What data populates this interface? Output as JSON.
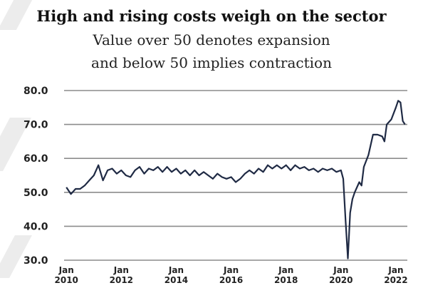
{
  "chart_data": {
    "type": "line",
    "title": "High and rising costs weigh on the sector",
    "subtitle_lines": [
      "Value over 50 denotes expansion",
      "and below 50 implies contraction"
    ],
    "xlabel": "",
    "ylabel": "",
    "ylim": [
      30,
      80
    ],
    "yticks": [
      "30.0",
      "40.0",
      "50.0",
      "60.0",
      "70.0",
      "80.0"
    ],
    "yticks_values": [
      30,
      40,
      50,
      60,
      70,
      80
    ],
    "xticks": [
      {
        "date": "2010-01",
        "line1": "Jan",
        "line2": "2010"
      },
      {
        "date": "2012-01",
        "line1": "Jan",
        "line2": "2012"
      },
      {
        "date": "2014-01",
        "line1": "Jan",
        "line2": "2014"
      },
      {
        "date": "2016-01",
        "line1": "Jan",
        "line2": "2016"
      },
      {
        "date": "2018-01",
        "line1": "Jan",
        "line2": "2018"
      },
      {
        "date": "2020-01",
        "line1": "Jan",
        "line2": "2020"
      },
      {
        "date": "2022-01",
        "line1": "Jan",
        "line2": "2022"
      }
    ],
    "xlim": [
      "2009-12",
      "2022-06"
    ],
    "grid": true,
    "line_color": "#1f2a44",
    "series": [
      {
        "points": [
          [
            "2010-01",
            51.5
          ],
          [
            "2010-03",
            49.5
          ],
          [
            "2010-05",
            51.0
          ],
          [
            "2010-07",
            51.0
          ],
          [
            "2010-09",
            52.0
          ],
          [
            "2010-11",
            53.5
          ],
          [
            "2011-01",
            55.0
          ],
          [
            "2011-03",
            58.0
          ],
          [
            "2011-05",
            53.5
          ],
          [
            "2011-07",
            56.5
          ],
          [
            "2011-09",
            57.0
          ],
          [
            "2011-11",
            55.5
          ],
          [
            "2012-01",
            56.5
          ],
          [
            "2012-03",
            55.0
          ],
          [
            "2012-05",
            54.5
          ],
          [
            "2012-07",
            56.5
          ],
          [
            "2012-09",
            57.5
          ],
          [
            "2012-11",
            55.5
          ],
          [
            "2013-01",
            57.0
          ],
          [
            "2013-03",
            56.5
          ],
          [
            "2013-05",
            57.5
          ],
          [
            "2013-07",
            56.0
          ],
          [
            "2013-09",
            57.5
          ],
          [
            "2013-11",
            56.0
          ],
          [
            "2014-01",
            57.0
          ],
          [
            "2014-03",
            55.5
          ],
          [
            "2014-05",
            56.5
          ],
          [
            "2014-07",
            55.0
          ],
          [
            "2014-09",
            56.5
          ],
          [
            "2014-11",
            55.0
          ],
          [
            "2015-01",
            56.0
          ],
          [
            "2015-03",
            55.0
          ],
          [
            "2015-05",
            54.0
          ],
          [
            "2015-07",
            55.5
          ],
          [
            "2015-09",
            54.5
          ],
          [
            "2015-11",
            54.0
          ],
          [
            "2016-01",
            54.5
          ],
          [
            "2016-03",
            53.0
          ],
          [
            "2016-05",
            54.0
          ],
          [
            "2016-07",
            55.5
          ],
          [
            "2016-09",
            56.5
          ],
          [
            "2016-11",
            55.5
          ],
          [
            "2017-01",
            57.0
          ],
          [
            "2017-03",
            56.0
          ],
          [
            "2017-05",
            58.0
          ],
          [
            "2017-07",
            57.0
          ],
          [
            "2017-09",
            58.0
          ],
          [
            "2017-11",
            57.0
          ],
          [
            "2018-01",
            58.0
          ],
          [
            "2018-03",
            56.5
          ],
          [
            "2018-05",
            58.0
          ],
          [
            "2018-07",
            57.0
          ],
          [
            "2018-09",
            57.5
          ],
          [
            "2018-11",
            56.5
          ],
          [
            "2019-01",
            57.0
          ],
          [
            "2019-03",
            56.0
          ],
          [
            "2019-05",
            57.0
          ],
          [
            "2019-07",
            56.5
          ],
          [
            "2019-09",
            57.0
          ],
          [
            "2019-11",
            56.0
          ],
          [
            "2020-01",
            56.5
          ],
          [
            "2020-02",
            54.0
          ],
          [
            "2020-03",
            42.0
          ],
          [
            "2020-04",
            30.5
          ],
          [
            "2020-05",
            44.0
          ],
          [
            "2020-06",
            48.0
          ],
          [
            "2020-07",
            50.0
          ],
          [
            "2020-09",
            53.0
          ],
          [
            "2020-10",
            52.0
          ],
          [
            "2020-11",
            57.5
          ],
          [
            "2021-01",
            61.0
          ],
          [
            "2021-03",
            67.0
          ],
          [
            "2021-05",
            67.0
          ],
          [
            "2021-07",
            66.5
          ],
          [
            "2021-08",
            65.0
          ],
          [
            "2021-09",
            70.0
          ],
          [
            "2021-11",
            71.5
          ],
          [
            "2022-01",
            75.0
          ],
          [
            "2022-02",
            77.0
          ],
          [
            "2022-03",
            76.5
          ],
          [
            "2022-04",
            71.0
          ],
          [
            "2022-05",
            70.0
          ]
        ]
      }
    ]
  }
}
